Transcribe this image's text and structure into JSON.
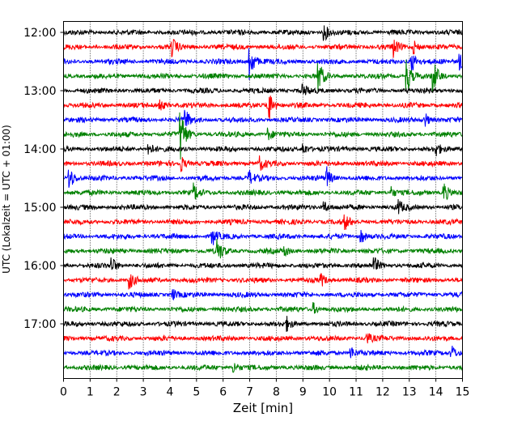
{
  "chart_data": {
    "type": "line",
    "title": "",
    "xlabel": "Zeit  [min]",
    "ylabel": "UTC (Lokalzeit = UTC + 01:00)",
    "xlim": [
      0,
      15
    ],
    "x_ticks": [
      "0",
      "1",
      "2",
      "3",
      "4",
      "5",
      "6",
      "7",
      "8",
      "9",
      "10",
      "11",
      "12",
      "13",
      "14",
      "15"
    ],
    "y_tick_labels": [
      "12:00",
      "13:00",
      "14:00",
      "15:00",
      "16:00",
      "17:00"
    ],
    "grid": "vertical dotted",
    "row_interval_min": 15,
    "colors": [
      "#000000",
      "#ff0000",
      "#0000ff",
      "#008000"
    ],
    "traces": [
      {
        "start": "12:00",
        "color": "#000000",
        "events": [
          {
            "t": 9.8,
            "amp": 1.6
          }
        ]
      },
      {
        "start": "12:15",
        "color": "#ff0000",
        "events": [
          {
            "t": 4.1,
            "amp": 1.4
          },
          {
            "t": 12.4,
            "amp": 1.6
          },
          {
            "t": 13.2,
            "amp": 1.1
          }
        ]
      },
      {
        "start": "12:30",
        "color": "#0000ff",
        "events": [
          {
            "t": 7.0,
            "amp": 3.5
          },
          {
            "t": 13.1,
            "amp": 1.8
          },
          {
            "t": 14.9,
            "amp": 1.6
          }
        ]
      },
      {
        "start": "12:45",
        "color": "#008000",
        "events": [
          {
            "t": 9.6,
            "amp": 2.6
          },
          {
            "t": 12.9,
            "amp": 3.2
          },
          {
            "t": 13.9,
            "amp": 3.0
          }
        ]
      },
      {
        "start": "13:00",
        "color": "#000000",
        "events": [
          {
            "t": 9.0,
            "amp": 1.1
          }
        ]
      },
      {
        "start": "13:15",
        "color": "#ff0000",
        "events": [
          {
            "t": 7.7,
            "amp": 3.5
          },
          {
            "t": 3.6,
            "amp": 1.2
          }
        ]
      },
      {
        "start": "13:30",
        "color": "#0000ff",
        "events": [
          {
            "t": 4.6,
            "amp": 1.6
          },
          {
            "t": 13.6,
            "amp": 1.2
          }
        ]
      },
      {
        "start": "13:45",
        "color": "#008000",
        "events": [
          {
            "t": 4.4,
            "amp": 5.0
          },
          {
            "t": 7.7,
            "amp": 1.0
          }
        ]
      },
      {
        "start": "14:00",
        "color": "#000000",
        "events": [
          {
            "t": 3.2,
            "amp": 1.3
          },
          {
            "t": 9.0,
            "amp": 1.2
          },
          {
            "t": 14.0,
            "amp": 1.1
          }
        ]
      },
      {
        "start": "14:15",
        "color": "#ff0000",
        "events": [
          {
            "t": 4.4,
            "amp": 1.6
          },
          {
            "t": 7.4,
            "amp": 1.1
          }
        ]
      },
      {
        "start": "14:30",
        "color": "#0000ff",
        "events": [
          {
            "t": 0.2,
            "amp": 2.6
          },
          {
            "t": 7.0,
            "amp": 1.1
          },
          {
            "t": 9.9,
            "amp": 1.8
          }
        ]
      },
      {
        "start": "14:45",
        "color": "#008000",
        "events": [
          {
            "t": 4.9,
            "amp": 1.5
          },
          {
            "t": 14.3,
            "amp": 2.0
          },
          {
            "t": 12.3,
            "amp": 1.1
          }
        ]
      },
      {
        "start": "15:00",
        "color": "#000000",
        "events": [
          {
            "t": 9.8,
            "amp": 1.1
          },
          {
            "t": 12.6,
            "amp": 1.2
          }
        ]
      },
      {
        "start": "15:15",
        "color": "#ff0000",
        "events": [
          {
            "t": 10.6,
            "amp": 1.1
          }
        ]
      },
      {
        "start": "15:30",
        "color": "#0000ff",
        "events": [
          {
            "t": 5.6,
            "amp": 1.5
          },
          {
            "t": 11.2,
            "amp": 1.2
          }
        ]
      },
      {
        "start": "15:45",
        "color": "#008000",
        "events": [
          {
            "t": 5.8,
            "amp": 2.0
          },
          {
            "t": 8.3,
            "amp": 1.0
          }
        ]
      },
      {
        "start": "16:00",
        "color": "#000000",
        "events": [
          {
            "t": 1.8,
            "amp": 1.6
          },
          {
            "t": 11.7,
            "amp": 1.2
          }
        ]
      },
      {
        "start": "16:15",
        "color": "#ff0000",
        "events": [
          {
            "t": 2.5,
            "amp": 1.4
          },
          {
            "t": 9.7,
            "amp": 1.0
          }
        ]
      },
      {
        "start": "16:30",
        "color": "#0000ff",
        "events": [
          {
            "t": 4.1,
            "amp": 1.0
          }
        ]
      },
      {
        "start": "16:45",
        "color": "#008000",
        "events": [
          {
            "t": 9.4,
            "amp": 1.0
          }
        ]
      },
      {
        "start": "17:00",
        "color": "#000000",
        "events": [
          {
            "t": 8.4,
            "amp": 1.0
          }
        ]
      },
      {
        "start": "17:15",
        "color": "#ff0000",
        "events": [
          {
            "t": 11.4,
            "amp": 1.0
          }
        ]
      },
      {
        "start": "17:30",
        "color": "#0000ff",
        "events": [
          {
            "t": 10.8,
            "amp": 1.2
          },
          {
            "t": 14.6,
            "amp": 1.4
          }
        ]
      },
      {
        "start": "17:45",
        "color": "#008000",
        "events": [
          {
            "t": 6.4,
            "amp": 1.0
          }
        ]
      }
    ]
  }
}
